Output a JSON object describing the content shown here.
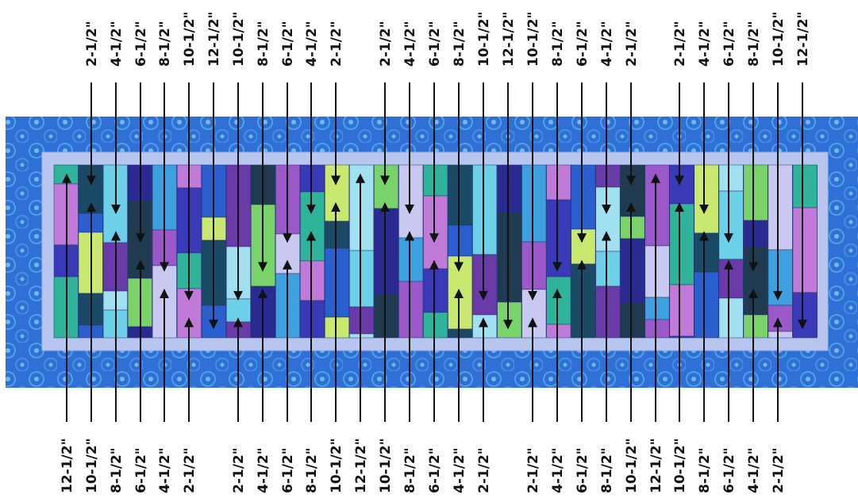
{
  "colors": {
    "border": "#2f6fd6",
    "border_flower": "#55b8e8",
    "inner_sashing": "#b8c6ef",
    "arrow": "#111111",
    "palette": [
      "#2a5fd0",
      "#3fa0e0",
      "#6bd0e8",
      "#2fb39a",
      "#7ad26a",
      "#c8e870",
      "#9a58c8",
      "#6a3aa8",
      "#c07ad8",
      "#2a2a90",
      "#1a4a66",
      "#c8c8f0",
      "#a0e0f0",
      "#3a3ab8",
      "#203a50"
    ]
  },
  "labels": {
    "top": [
      "2-1/2\"",
      "4-1/2\"",
      "6-1/2\"",
      "8-1/2\"",
      "10-1/2\"",
      "12-1/2\"",
      "10-1/2\"",
      "8-1/2\"",
      "6-1/2\"",
      "4-1/2\"",
      "2-1/2\"",
      "2-1/2\"",
      "4-1/2\"",
      "6-1/2\"",
      "8-1/2\"",
      "10-1/2\"",
      "12-1/2\"",
      "10-1/2\"",
      "8-1/2\"",
      "6-1/2\"",
      "4-1/2\"",
      "2-1/2\"",
      "2-1/2\"",
      "4-1/2\"",
      "6-1/2\"",
      "8-1/2\"",
      "10-1/2\"",
      "12-1/2\""
    ],
    "bottom": [
      "12-1/2\"",
      "10-1/2\"",
      "8-1/2\"",
      "6-1/2\"",
      "4-1/2\"",
      "2-1/2\"",
      "2-1/2\"",
      "4-1/2\"",
      "6-1/2\"",
      "8-1/2\"",
      "10-1/2\"",
      "12-1/2\"",
      "10-1/2\"",
      "8-1/2\"",
      "6-1/2\"",
      "4-1/2\"",
      "2-1/2\"",
      "2-1/2\"",
      "4-1/2\"",
      "6-1/2\"",
      "8-1/2\"",
      "10-1/2\"",
      "12-1/2\"",
      "10-1/2\"",
      "8-1/2\"",
      "6-1/2\"",
      "4-1/2\"",
      "2-1/2\""
    ]
  },
  "strip_counts": {
    "top": [
      1,
      2,
      3,
      4,
      5,
      6,
      5,
      4,
      3,
      2,
      1,
      1,
      2,
      3,
      4,
      5,
      6,
      5,
      4,
      3,
      2,
      1,
      1,
      2,
      3,
      4,
      5,
      6
    ],
    "bottom": [
      6,
      5,
      4,
      3,
      2,
      1,
      1,
      2,
      3,
      4,
      5,
      6,
      5,
      4,
      3,
      2,
      1,
      1,
      2,
      3,
      4,
      5,
      6,
      5,
      4,
      3,
      2,
      1
    ]
  }
}
